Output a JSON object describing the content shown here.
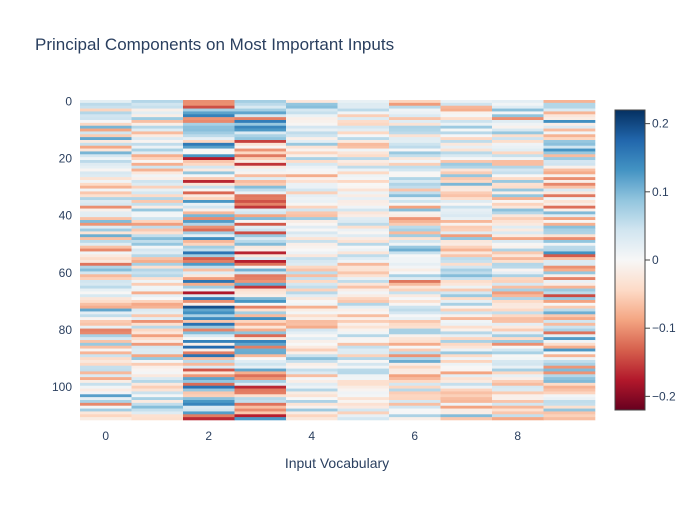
{
  "chart_data": {
    "type": "heatmap",
    "title": "Principal Components on Most Important Inputs",
    "xlabel": "Input Vocabulary",
    "ylabel": "",
    "x": [
      0,
      1,
      2,
      3,
      4,
      5,
      6,
      7,
      8,
      9
    ],
    "x_ticks": [
      "0",
      "2",
      "4",
      "6",
      "8"
    ],
    "x_tick_values": [
      0,
      2,
      4,
      6,
      8
    ],
    "y_ticks": [
      "0",
      "20",
      "40",
      "60",
      "80",
      "100"
    ],
    "y_tick_values": [
      0,
      20,
      40,
      60,
      80,
      100
    ],
    "y_range": [
      -0.5,
      111.5
    ],
    "n_rows": 112,
    "zlim": [
      -0.22,
      0.22
    ],
    "colorscale": "RdBu",
    "colorbar": {
      "tick_labels": [
        "0.2",
        "0.1",
        "0",
        "−0.1",
        "−0.2"
      ],
      "tick_values": [
        0.2,
        0.1,
        0,
        -0.1,
        -0.2
      ]
    },
    "column_amplitude": [
      0.11,
      0.08,
      0.17,
      0.15,
      0.07,
      0.05,
      0.09,
      0.08,
      0.08,
      0.12
    ]
  }
}
